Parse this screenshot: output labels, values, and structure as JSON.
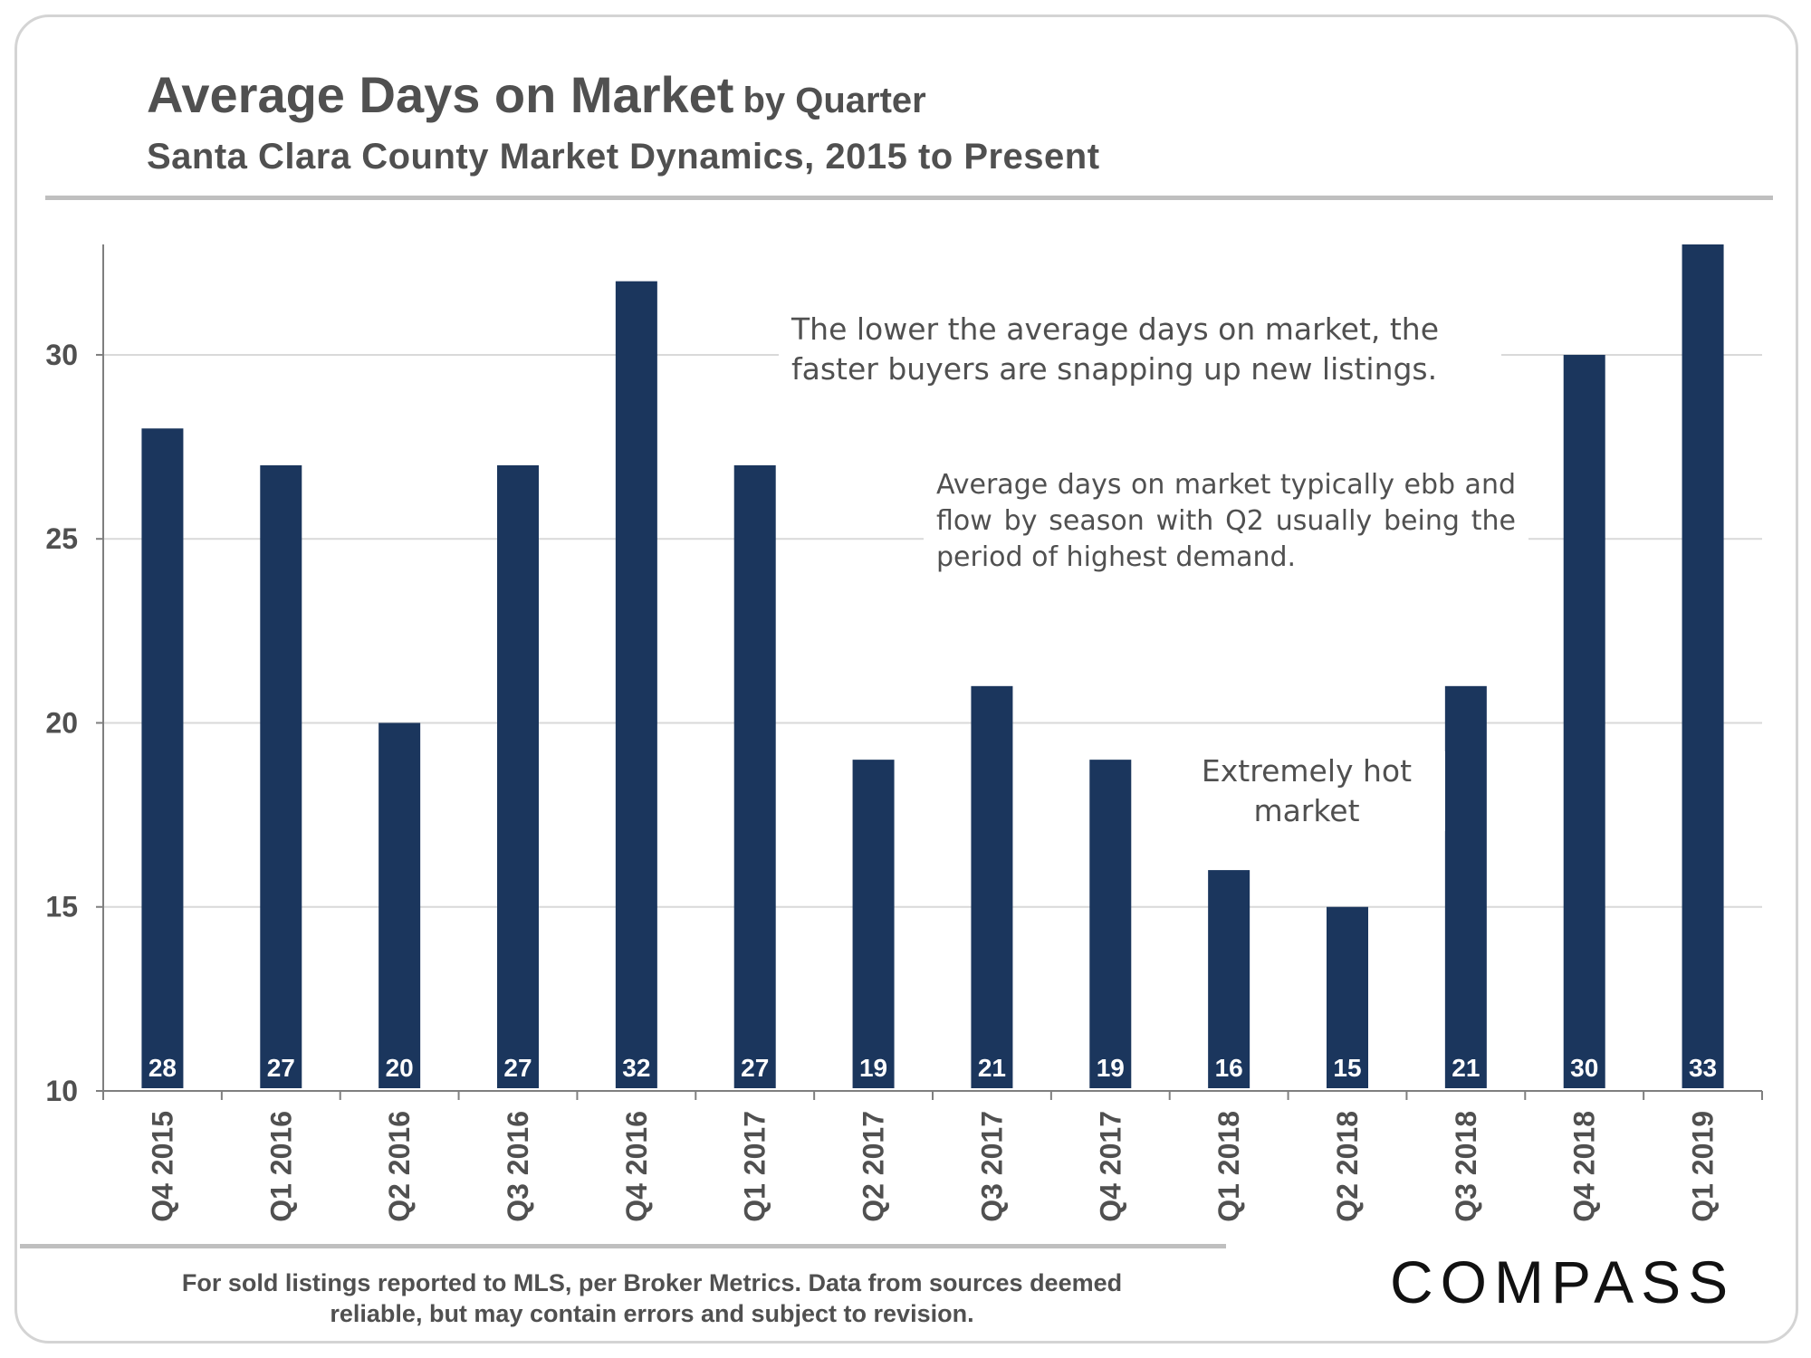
{
  "header": {
    "title": "Average Days on Market",
    "title_suffix": "by Quarter",
    "subtitle": "Santa Clara County Market Dynamics, 2015 to Present"
  },
  "annotations": {
    "note_speed": "The lower the average days on market, the faster buyers are snapping up new listings.",
    "note_season": "Average days on market typically ebb and flow by season with Q2 usually being the period of highest demand.",
    "note_hot": "Extremely hot market"
  },
  "footer": {
    "disclaimer": "For sold listings reported to MLS, per Broker Metrics. Data from sources deemed reliable, but may contain errors and subject to revision.",
    "logo": "COMPASS"
  },
  "colors": {
    "bar": "#1b365d",
    "grid": "#d9d9d9",
    "text": "#505050"
  },
  "chart_data": {
    "type": "bar",
    "title": "Average Days on Market by Quarter",
    "xlabel": "",
    "ylabel": "",
    "ylim": [
      10,
      33
    ],
    "yticks": [
      10,
      15,
      20,
      25,
      30
    ],
    "grid": true,
    "categories": [
      "Q4 2015",
      "Q1 2016",
      "Q2 2016",
      "Q3 2016",
      "Q4 2016",
      "Q1 2017",
      "Q2 2017",
      "Q3 2017",
      "Q4 2017",
      "Q1 2018",
      "Q2 2018",
      "Q3 2018",
      "Q4 2018",
      "Q1 2019"
    ],
    "values": [
      28,
      27,
      20,
      27,
      32,
      27,
      19,
      21,
      19,
      16,
      15,
      21,
      30,
      33
    ]
  }
}
